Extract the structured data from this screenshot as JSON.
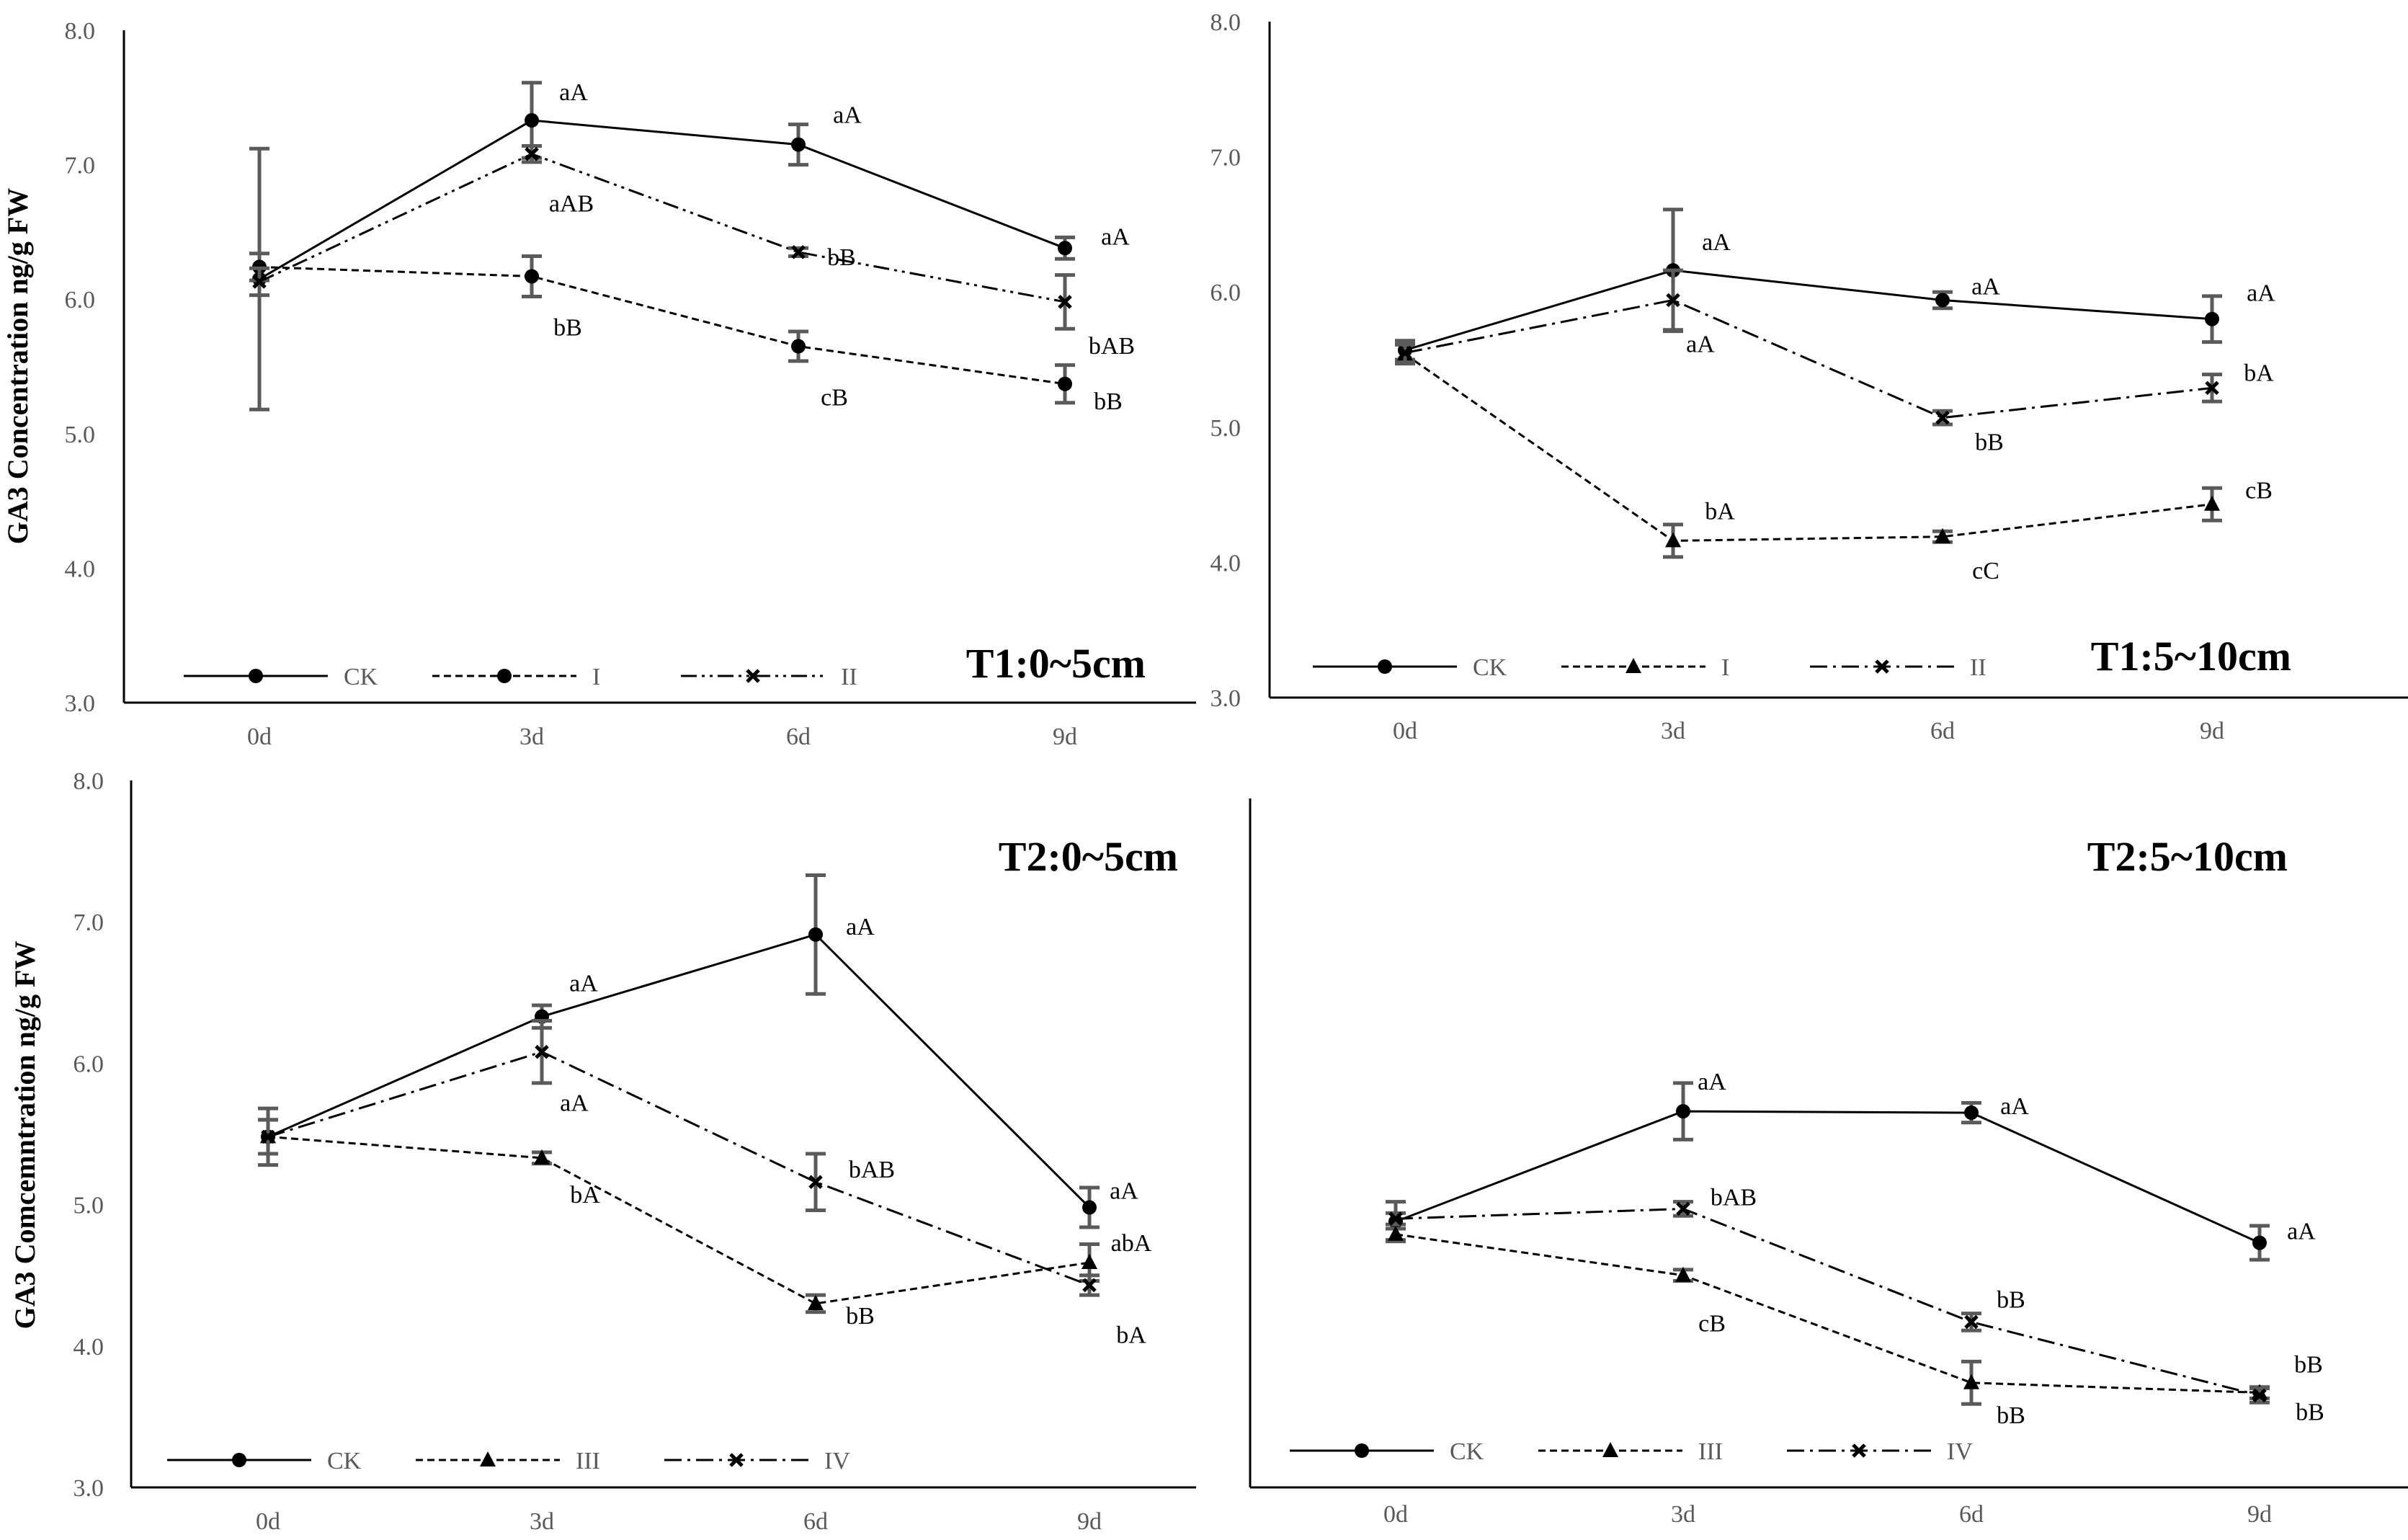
{
  "chart_data": [
    {
      "type": "line",
      "title": "T1:0~5cm",
      "ylabel": "GA3 Concentration ng/g FW",
      "categories": [
        "0d",
        "3d",
        "6d",
        "9d"
      ],
      "ylim": [
        3.0,
        8.0
      ],
      "yticks": [
        "3.0",
        "4.0",
        "5.0",
        "6.0",
        "7.0",
        "8.0"
      ],
      "series": [
        {
          "name": "CK",
          "style": "solid",
          "marker": "circle",
          "values": [
            6.15,
            7.33,
            7.15,
            6.38
          ],
          "errors": [
            0.97,
            0.28,
            0.15,
            0.08
          ],
          "labels": [
            "",
            "aA",
            "aA",
            "aA"
          ]
        },
        {
          "name": "I",
          "style": "dash",
          "marker": "circle",
          "values": [
            6.24,
            6.17,
            5.65,
            5.37
          ],
          "errors": [
            0.1,
            0.15,
            0.11,
            0.14
          ],
          "labels": [
            "",
            "bB",
            "cB",
            "bB"
          ]
        },
        {
          "name": "II",
          "style": "dashdotdot",
          "marker": "x",
          "values": [
            6.13,
            7.08,
            6.35,
            5.98
          ],
          "errors": [
            0.1,
            0.06,
            0.03,
            0.2
          ],
          "labels": [
            "",
            "aAB",
            "bB",
            "bAB"
          ]
        }
      ]
    },
    {
      "type": "line",
      "title": "T1:5~10cm",
      "ylabel": "",
      "categories": [
        "0d",
        "3d",
        "6d",
        "9d"
      ],
      "ylim": [
        3.0,
        8.0
      ],
      "yticks": [
        "3.0",
        "4.0",
        "5.0",
        "6.0",
        "7.0",
        "8.0"
      ],
      "series": [
        {
          "name": "CK",
          "style": "solid",
          "marker": "circle",
          "values": [
            5.57,
            6.16,
            5.94,
            5.8
          ],
          "errors": [
            0.07,
            0.45,
            0.06,
            0.17
          ],
          "labels": [
            "",
            "aA",
            "aA",
            "aA"
          ]
        },
        {
          "name": "I",
          "style": "dash",
          "marker": "triangle",
          "values": [
            5.54,
            4.16,
            4.19,
            4.43
          ],
          "errors": [
            0.07,
            0.12,
            0.04,
            0.12
          ],
          "labels": [
            "",
            "bA",
            "cC",
            "cB"
          ]
        },
        {
          "name": "II",
          "style": "dashdot",
          "marker": "x",
          "values": [
            5.55,
            5.94,
            5.07,
            5.29
          ],
          "errors": [
            0.07,
            0.22,
            0.05,
            0.1
          ],
          "labels": [
            "",
            "aA",
            "bB",
            "bA"
          ]
        }
      ]
    },
    {
      "type": "line",
      "title": "T2:0~5cm",
      "ylabel": "GA3 Comcemntration ng/g FW",
      "categories": [
        "0d",
        "3d",
        "6d",
        "9d"
      ],
      "ylim": [
        3.0,
        8.0
      ],
      "yticks": [
        "3.0",
        "4.0",
        "5.0",
        "6.0",
        "7.0",
        "8.0"
      ],
      "series": [
        {
          "name": "CK",
          "style": "solid",
          "marker": "circle",
          "values": [
            5.48,
            6.33,
            6.91,
            4.98
          ],
          "errors": [
            0.2,
            0.08,
            0.42,
            0.14
          ],
          "labels": [
            "",
            "aA",
            "aA",
            "aA"
          ]
        },
        {
          "name": "III",
          "style": "dash",
          "marker": "triangle",
          "values": [
            5.48,
            5.33,
            4.3,
            4.59
          ],
          "errors": [
            0.12,
            0.04,
            0.06,
            0.13
          ],
          "labels": [
            "",
            "bA",
            "bB",
            "abA"
          ]
        },
        {
          "name": "IV",
          "style": "dashdot",
          "marker": "x",
          "values": [
            5.48,
            6.08,
            5.16,
            4.43
          ],
          "errors": [
            0.12,
            0.22,
            0.2,
            0.07
          ],
          "labels": [
            "",
            "aA",
            "bAB",
            "bA"
          ]
        }
      ]
    },
    {
      "type": "line",
      "title": "T2:5~10cm",
      "ylabel": "",
      "categories": [
        "0d",
        "3d",
        "6d",
        "9d"
      ],
      "ylim": [
        3.0,
        8.0
      ],
      "yticks": [],
      "series": [
        {
          "name": "CK",
          "style": "solid",
          "marker": "circle",
          "values": [
            4.88,
            5.66,
            5.65,
            4.73
          ],
          "errors": [
            0.14,
            0.2,
            0.07,
            0.12
          ],
          "labels": [
            "",
            "aA",
            "aA",
            "aA"
          ]
        },
        {
          "name": "III",
          "style": "dash",
          "marker": "triangle",
          "values": [
            4.79,
            4.5,
            3.74,
            3.67
          ],
          "errors": [
            0.04,
            0.04,
            0.15,
            0.04
          ],
          "labels": [
            "",
            "cB",
            "bB",
            "bB"
          ]
        },
        {
          "name": "IV",
          "style": "dashdot",
          "marker": "x",
          "values": [
            4.9,
            4.97,
            4.17,
            3.65
          ],
          "errors": [
            0.04,
            0.05,
            0.06,
            0.05
          ],
          "labels": [
            "",
            "bAB",
            "bB",
            "bB"
          ]
        }
      ]
    }
  ]
}
